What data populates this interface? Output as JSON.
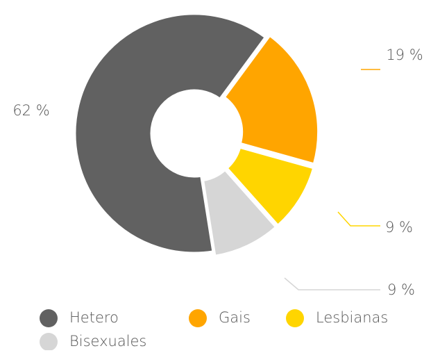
{
  "chart_data": {
    "type": "donut",
    "categories": [
      "Hetero",
      "Gais",
      "Lesbianas",
      "Bisexuales"
    ],
    "values": [
      62,
      19,
      9,
      9
    ],
    "value_labels": [
      "62 %",
      "19 %",
      "9 %",
      "9 %"
    ],
    "colors": [
      "#616161",
      "#ffa500",
      "#ffd500",
      "#d6d6d6"
    ],
    "legend": "bottom"
  }
}
